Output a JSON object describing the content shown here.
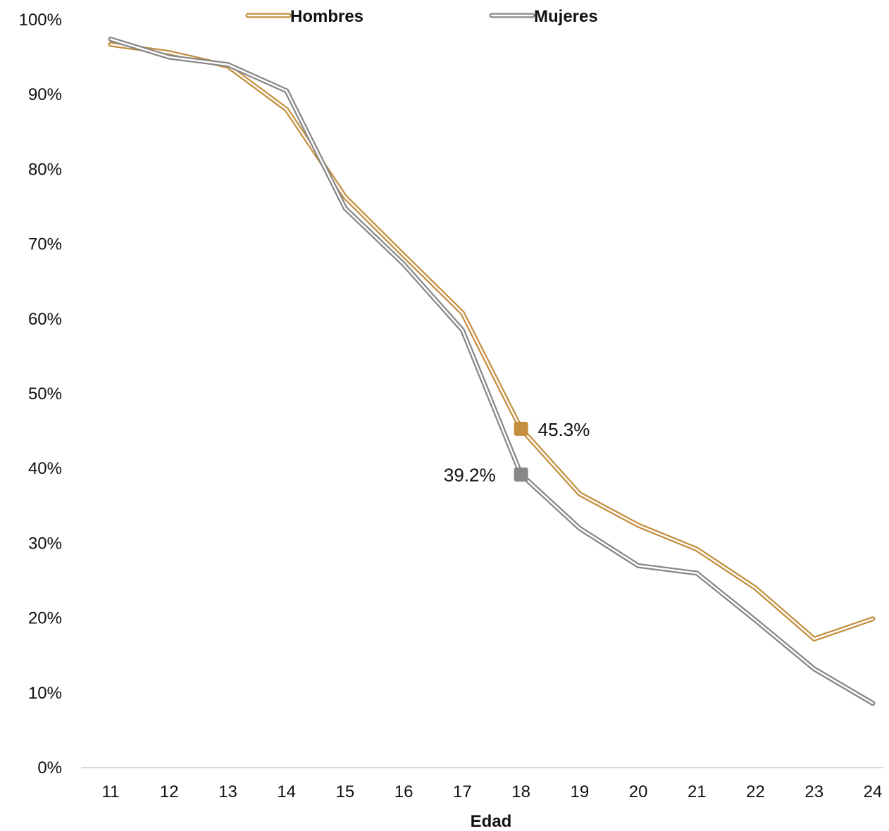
{
  "chart_data": {
    "type": "line",
    "title": "",
    "xlabel": "Edad",
    "ylabel": "",
    "x": [
      11,
      12,
      13,
      14,
      15,
      16,
      17,
      18,
      19,
      20,
      21,
      22,
      23,
      24
    ],
    "ylim": [
      0,
      100
    ],
    "yticks": [
      "0%",
      "10%",
      "20%",
      "30%",
      "40%",
      "50%",
      "60%",
      "70%",
      "80%",
      "90%",
      "100%"
    ],
    "grid": false,
    "legend_position": "top",
    "series": [
      {
        "name": "Hombres",
        "color": "#C48E3F",
        "values": [
          96.7,
          95.6,
          93.8,
          88.0,
          76.3,
          68.5,
          60.8,
          45.3,
          36.6,
          32.4,
          29.2,
          24.0,
          17.2,
          19.9
        ]
      },
      {
        "name": "Mujeres",
        "color": "#878787",
        "values": [
          97.4,
          95.0,
          94.0,
          90.5,
          74.8,
          67.3,
          58.5,
          39.2,
          32.0,
          27.0,
          26.0,
          19.7,
          13.2,
          8.6
        ]
      }
    ],
    "annotations": [
      {
        "series": 0,
        "x": 18,
        "text": "45.3%",
        "side": "right"
      },
      {
        "series": 1,
        "x": 18,
        "text": "39.2%",
        "side": "left"
      }
    ]
  }
}
